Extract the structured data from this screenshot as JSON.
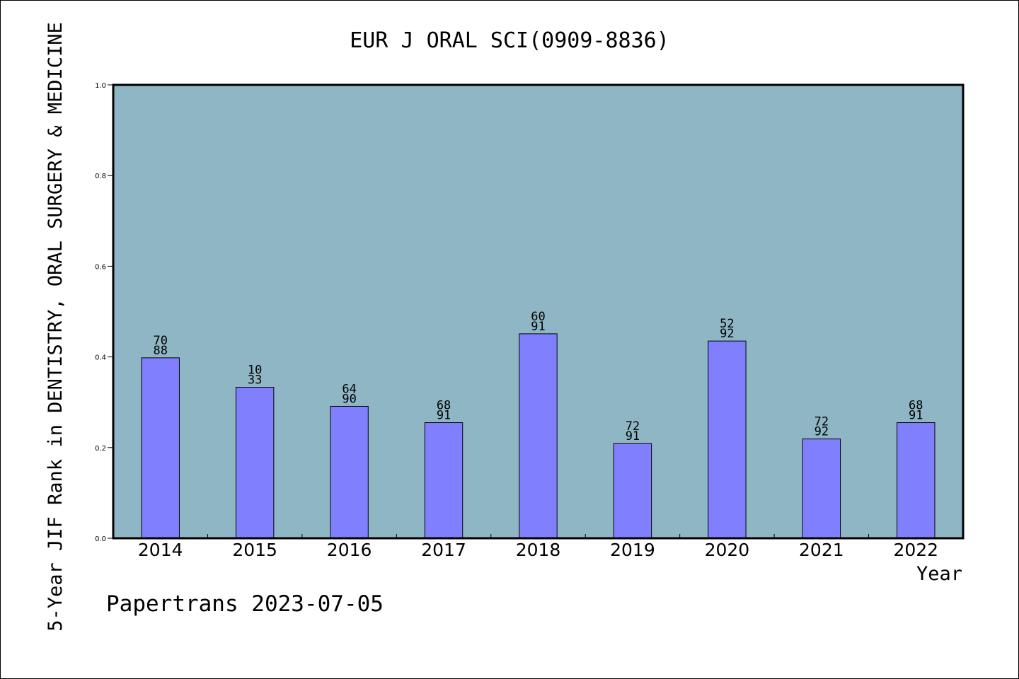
{
  "chart_data": {
    "type": "bar",
    "title": "EUR J ORAL SCI(0909-8836)",
    "xlabel": "Year",
    "ylabel": "5-Year JIF Rank in DENTISTRY, ORAL SURGERY & MEDICINE",
    "ylim": [
      0,
      1.0
    ],
    "yticks": [
      "0.0",
      "0.2",
      "0.4",
      "0.6",
      "0.8",
      "1.0"
    ],
    "categories": [
      "2014",
      "2015",
      "2016",
      "2017",
      "2018",
      "2019",
      "2020",
      "2021",
      "2022"
    ],
    "values": [
      0.398,
      0.333,
      0.291,
      0.255,
      0.451,
      0.209,
      0.435,
      0.219,
      0.255
    ],
    "rank_labels": [
      {
        "rank": "70",
        "total": "88"
      },
      {
        "rank": "10",
        "total": "33"
      },
      {
        "rank": "64",
        "total": "90"
      },
      {
        "rank": "68",
        "total": "91"
      },
      {
        "rank": "60",
        "total": "91"
      },
      {
        "rank": "72",
        "total": "91"
      },
      {
        "rank": "52",
        "total": "92"
      },
      {
        "rank": "72",
        "total": "92"
      },
      {
        "rank": "68",
        "total": "91"
      }
    ],
    "grid": false,
    "colors": {
      "plot_background": "#8fb6c5",
      "bar_fill": "#8080ff",
      "bar_stroke": "#000000"
    }
  },
  "footer": {
    "credit": "Papertrans 2023-07-05"
  }
}
